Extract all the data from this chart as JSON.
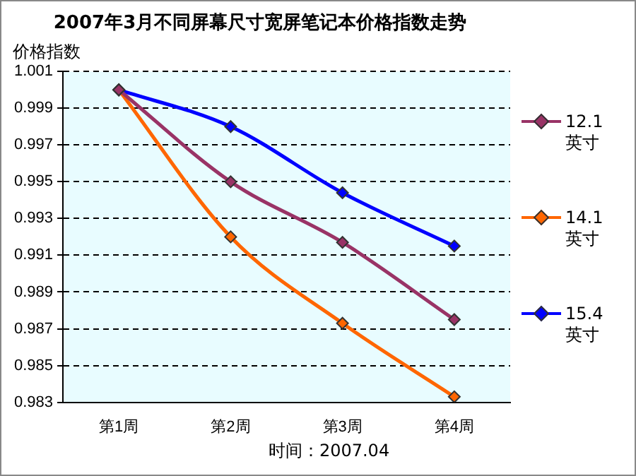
{
  "chart_data": {
    "type": "line",
    "title": "2007年3月不同屏幕尺寸宽屏笔记本价格指数走势",
    "ylabel": "价格指数",
    "categories": [
      "第1周",
      "第2周",
      "第3周",
      "第4周"
    ],
    "series": [
      {
        "name": "12.1 英寸",
        "color": "#993366",
        "values": [
          1.0,
          0.995,
          0.9917,
          0.9875
        ]
      },
      {
        "name": "14.1 英寸",
        "color": "#ff6600",
        "values": [
          1.0,
          0.992,
          0.9873,
          0.9833
        ]
      },
      {
        "name": "15.4 英寸",
        "color": "#0000ff",
        "values": [
          1.0,
          0.998,
          0.9944,
          0.9915
        ]
      }
    ],
    "ylim": [
      0.983,
      1.001
    ],
    "yticks": [
      0.983,
      0.985,
      0.987,
      0.989,
      0.991,
      0.993,
      0.995,
      0.997,
      0.999,
      1.001
    ],
    "grid": "y",
    "legend": "right",
    "marker": "diamond",
    "line_style": "solid",
    "annotations": [
      "时间：2007.04"
    ]
  }
}
